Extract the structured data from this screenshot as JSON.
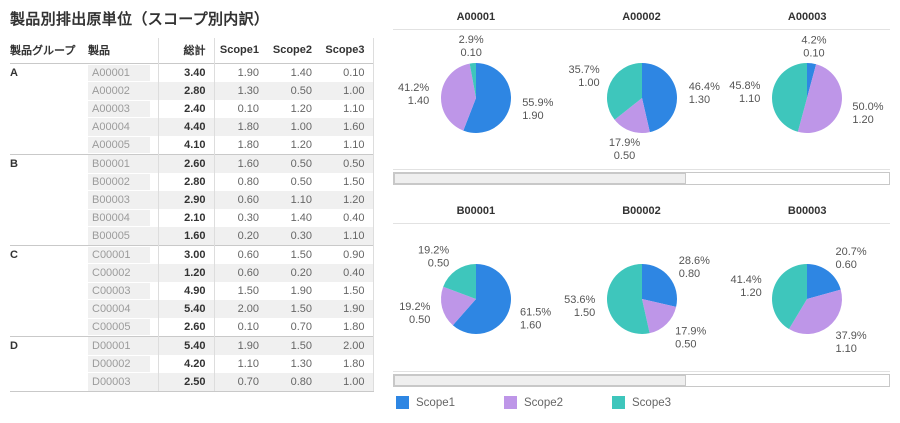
{
  "title": "製品別排出原単位（スコープ別内訳）",
  "colors": {
    "Scope1": "#2E86E3",
    "Scope2": "#BE96E8",
    "Scope3": "#3EC6BC"
  },
  "table": {
    "headers": [
      "製品グループ",
      "製品",
      "総計",
      "Scope1",
      "Scope2",
      "Scope3"
    ],
    "rows": [
      {
        "group": "A",
        "product": "A00001",
        "total": "3.40",
        "scope1": "1.90",
        "scope2": "1.40",
        "scope3": "0.10"
      },
      {
        "group": "",
        "product": "A00002",
        "total": "2.80",
        "scope1": "1.30",
        "scope2": "0.50",
        "scope3": "1.00"
      },
      {
        "group": "",
        "product": "A00003",
        "total": "2.40",
        "scope1": "0.10",
        "scope2": "1.20",
        "scope3": "1.10"
      },
      {
        "group": "",
        "product": "A00004",
        "total": "4.40",
        "scope1": "1.80",
        "scope2": "1.00",
        "scope3": "1.60"
      },
      {
        "group": "",
        "product": "A00005",
        "total": "4.10",
        "scope1": "1.80",
        "scope2": "1.20",
        "scope3": "1.10"
      },
      {
        "group": "B",
        "product": "B00001",
        "total": "2.60",
        "scope1": "1.60",
        "scope2": "0.50",
        "scope3": "0.50"
      },
      {
        "group": "",
        "product": "B00002",
        "total": "2.80",
        "scope1": "0.80",
        "scope2": "0.50",
        "scope3": "1.50"
      },
      {
        "group": "",
        "product": "B00003",
        "total": "2.90",
        "scope1": "0.60",
        "scope2": "1.10",
        "scope3": "1.20"
      },
      {
        "group": "",
        "product": "B00004",
        "total": "2.10",
        "scope1": "0.30",
        "scope2": "1.40",
        "scope3": "0.40"
      },
      {
        "group": "",
        "product": "B00005",
        "total": "1.60",
        "scope1": "0.20",
        "scope2": "0.30",
        "scope3": "1.10"
      },
      {
        "group": "C",
        "product": "C00001",
        "total": "3.00",
        "scope1": "0.60",
        "scope2": "1.50",
        "scope3": "0.90"
      },
      {
        "group": "",
        "product": "C00002",
        "total": "1.20",
        "scope1": "0.60",
        "scope2": "0.20",
        "scope3": "0.40"
      },
      {
        "group": "",
        "product": "C00003",
        "total": "4.90",
        "scope1": "1.50",
        "scope2": "1.90",
        "scope3": "1.50"
      },
      {
        "group": "",
        "product": "C00004",
        "total": "5.40",
        "scope1": "2.00",
        "scope2": "1.50",
        "scope3": "1.90"
      },
      {
        "group": "",
        "product": "C00005",
        "total": "2.60",
        "scope1": "0.10",
        "scope2": "0.70",
        "scope3": "1.80"
      },
      {
        "group": "D",
        "product": "D00001",
        "total": "5.40",
        "scope1": "1.90",
        "scope2": "1.50",
        "scope3": "2.00"
      },
      {
        "group": "",
        "product": "D00002",
        "total": "4.20",
        "scope1": "1.10",
        "scope2": "1.30",
        "scope3": "1.80"
      },
      {
        "group": "",
        "product": "D00003",
        "total": "2.50",
        "scope1": "0.70",
        "scope2": "0.80",
        "scope3": "1.00"
      }
    ]
  },
  "chart_data": [
    {
      "type": "pie",
      "row": 0,
      "title": "A00001",
      "slices": [
        {
          "name": "Scope1",
          "pct": 55.9,
          "pct_label": "55.9%",
          "value": "1.90"
        },
        {
          "name": "Scope2",
          "pct": 41.2,
          "pct_label": "41.2%",
          "value": "1.40"
        },
        {
          "name": "Scope3",
          "pct": 2.9,
          "pct_label": "2.9%",
          "value": "0.10"
        }
      ]
    },
    {
      "type": "pie",
      "row": 0,
      "title": "A00002",
      "slices": [
        {
          "name": "Scope1",
          "pct": 46.4,
          "pct_label": "46.4%",
          "value": "1.30"
        },
        {
          "name": "Scope2",
          "pct": 17.9,
          "pct_label": "17.9%",
          "value": "0.50"
        },
        {
          "name": "Scope3",
          "pct": 35.7,
          "pct_label": "35.7%",
          "value": "1.00"
        }
      ]
    },
    {
      "type": "pie",
      "row": 0,
      "title": "A00003",
      "slices": [
        {
          "name": "Scope1",
          "pct": 4.2,
          "pct_label": "4.2%",
          "value": "0.10"
        },
        {
          "name": "Scope2",
          "pct": 50.0,
          "pct_label": "50.0%",
          "value": "1.20"
        },
        {
          "name": "Scope3",
          "pct": 45.8,
          "pct_label": "45.8%",
          "value": "1.10"
        }
      ]
    },
    {
      "type": "pie",
      "row": 1,
      "title": "B00001",
      "slices": [
        {
          "name": "Scope1",
          "pct": 61.5,
          "pct_label": "61.5%",
          "value": "1.60"
        },
        {
          "name": "Scope2",
          "pct": 19.2,
          "pct_label": "19.2%",
          "value": "0.50"
        },
        {
          "name": "Scope3",
          "pct": 19.2,
          "pct_label": "19.2%",
          "value": "0.50"
        }
      ]
    },
    {
      "type": "pie",
      "row": 1,
      "title": "B00002",
      "slices": [
        {
          "name": "Scope1",
          "pct": 28.6,
          "pct_label": "28.6%",
          "value": "0.80"
        },
        {
          "name": "Scope2",
          "pct": 17.9,
          "pct_label": "17.9%",
          "value": "0.50"
        },
        {
          "name": "Scope3",
          "pct": 53.6,
          "pct_label": "53.6%",
          "value": "1.50"
        }
      ]
    },
    {
      "type": "pie",
      "row": 1,
      "title": "B00003",
      "slices": [
        {
          "name": "Scope1",
          "pct": 20.7,
          "pct_label": "20.7%",
          "value": "0.60"
        },
        {
          "name": "Scope2",
          "pct": 37.9,
          "pct_label": "37.9%",
          "value": "1.10"
        },
        {
          "name": "Scope3",
          "pct": 41.4,
          "pct_label": "41.4%",
          "value": "1.20"
        }
      ]
    }
  ],
  "scrollbars": [
    {
      "thumb_percent": 59
    },
    {
      "thumb_percent": 59
    }
  ],
  "legend": [
    {
      "label": "Scope1"
    },
    {
      "label": "Scope2"
    },
    {
      "label": "Scope3"
    }
  ]
}
